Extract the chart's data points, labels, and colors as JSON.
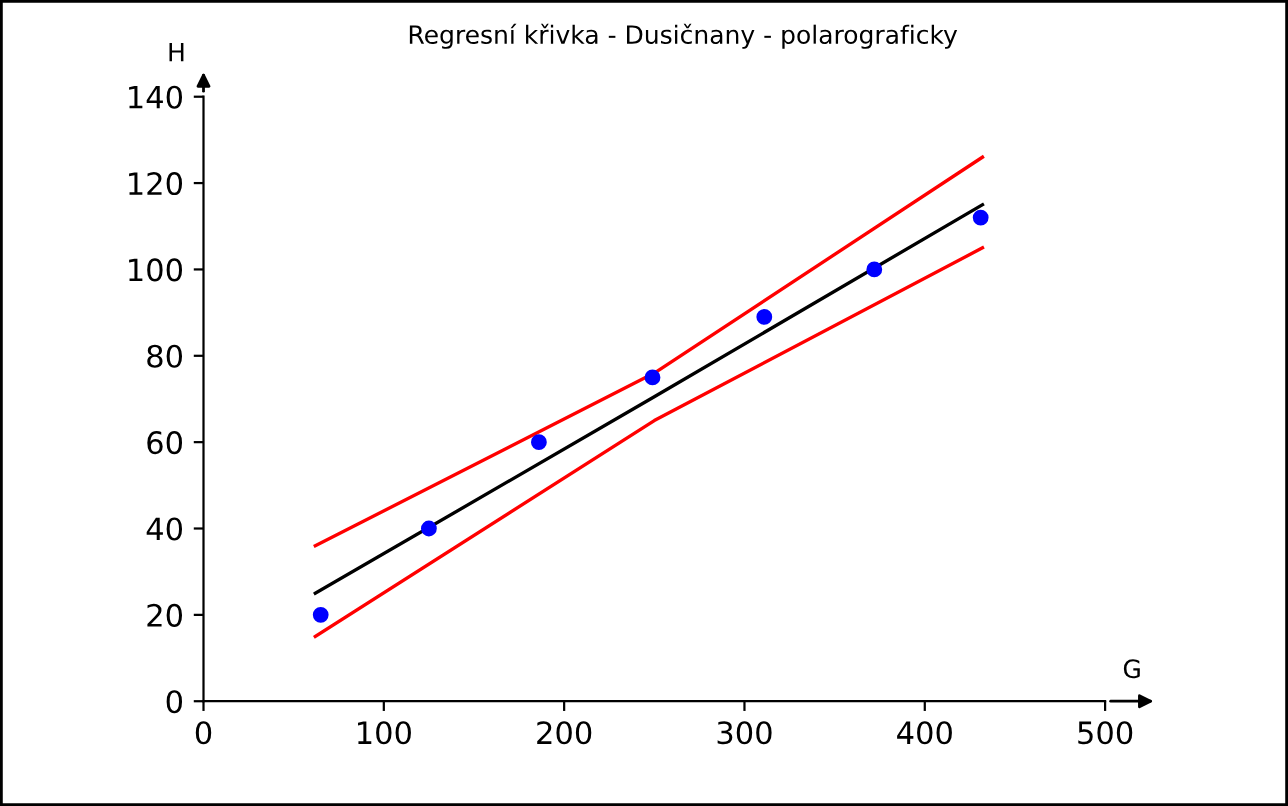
{
  "chart_data": {
    "type": "scatter",
    "title": "Regresní křivka - Dusičnany - polarograficky",
    "xlabel": "G",
    "ylabel": "H",
    "xlim": [
      0,
      500
    ],
    "xticks": [
      0,
      100,
      200,
      300,
      400,
      500
    ],
    "ylim": [
      0,
      140
    ],
    "yticks": [
      0,
      20,
      40,
      60,
      80,
      100,
      120,
      140
    ],
    "grid": false,
    "series": [
      {
        "color": "#0000ff",
        "marker": "circle",
        "x": [
          65,
          125,
          186,
          249,
          311,
          372,
          431
        ],
        "values": [
          20,
          40,
          60,
          75,
          89,
          100,
          112
        ]
      },
      {
        "type": "line",
        "marker": "none",
        "color": "#000000",
        "x": [
          62,
          250,
          432
        ],
        "values": [
          25,
          70.5,
          115
        ]
      },
      {
        "type": "line",
        "marker": "none",
        "color": "#ff0000",
        "x": [
          62,
          250,
          432
        ],
        "values": [
          36,
          76,
          126
        ]
      },
      {
        "type": "line",
        "marker": "none",
        "color": "#ff0000",
        "x": [
          62,
          250,
          432
        ],
        "values": [
          15,
          65,
          105
        ]
      }
    ]
  }
}
